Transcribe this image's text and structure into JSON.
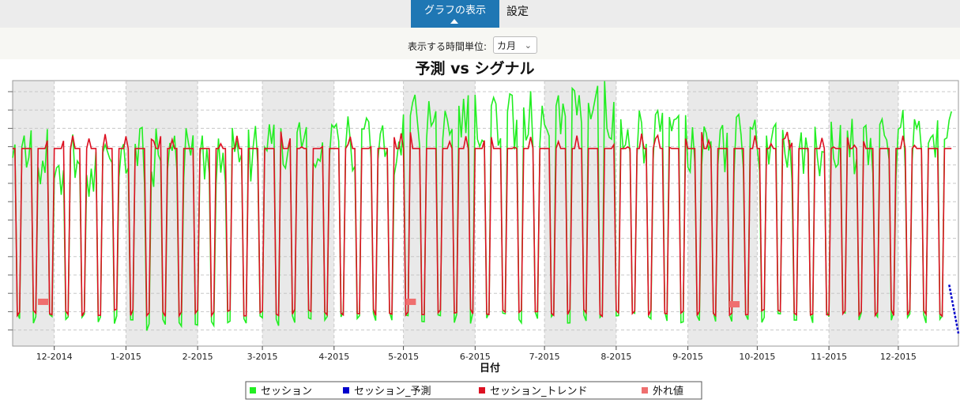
{
  "tabs": [
    {
      "label": "グラフの表示",
      "active": true
    },
    {
      "label": "設定",
      "active": false
    }
  ],
  "controls": {
    "time_unit_label": "表示する時間単位:",
    "time_unit_value": "カ月"
  },
  "colors": {
    "accent": "#1f77b4",
    "series_session": "#22ee22",
    "series_forecast": "#0000cc",
    "series_trend": "#dd1122",
    "outlier": "#ef6f6f"
  },
  "chart_data": {
    "type": "line",
    "title": "予測 vs シグナル",
    "xlabel": "日付",
    "ylabel": "",
    "x_ticks": [
      "12-2014",
      "1-2015",
      "2-2015",
      "3-2015",
      "4-2015",
      "5-2015",
      "6-2015",
      "7-2015",
      "8-2015",
      "9-2015",
      "10-2015",
      "11-2015",
      "12-2015"
    ],
    "x_range": [
      "2014-11-13",
      "2015-12-27"
    ],
    "y_ticks_visible": false,
    "grid": true,
    "legend_position": "bottom",
    "series": [
      {
        "name": "セッション",
        "color": "#22ee22",
        "values_per_month": [
          {
            "month": "2014-11",
            "weekday_level": 0.83,
            "weekend_level": 0.09
          },
          {
            "month": "2014-12",
            "weekday_level": 0.78,
            "weekend_level": 0.08
          },
          {
            "month": "2015-01",
            "weekday_level": 0.82,
            "weekend_level": 0.06
          },
          {
            "month": "2015-02",
            "weekday_level": 0.82,
            "weekend_level": 0.08
          },
          {
            "month": "2015-03",
            "weekday_level": 0.88,
            "weekend_level": 0.08
          },
          {
            "month": "2015-04",
            "weekday_level": 0.86,
            "weekend_level": 0.09
          },
          {
            "month": "2015-05",
            "weekday_level": 0.95,
            "weekend_level": 0.09
          },
          {
            "month": "2015-06",
            "weekday_level": 0.97,
            "weekend_level": 0.09
          },
          {
            "month": "2015-07",
            "weekday_level": 1.0,
            "weekend_level": 0.09
          },
          {
            "month": "2015-08",
            "weekday_level": 0.88,
            "weekend_level": 0.09
          },
          {
            "month": "2015-09",
            "weekday_level": 0.87,
            "weekend_level": 0.09
          },
          {
            "month": "2015-10",
            "weekday_level": 0.85,
            "weekend_level": 0.09
          },
          {
            "month": "2015-11",
            "weekday_level": 0.86,
            "weekend_level": 0.09
          },
          {
            "month": "2015-12",
            "weekday_level": 0.88,
            "weekend_level": 0.09
          }
        ]
      },
      {
        "name": "セッション_予測",
        "color": "#0000cc",
        "values": [
          {
            "x": "2015-12-23",
            "y": 0.2
          },
          {
            "x": "2015-12-27",
            "y": 0.0
          }
        ]
      },
      {
        "name": "セッション_トレンド",
        "color": "#dd1122",
        "weekday_level": 0.76,
        "weekend_level": 0.1,
        "peak_level": 0.83
      },
      {
        "name": "外れ値",
        "color": "#ef6f6f",
        "values": [
          {
            "x": "2014-11-26",
            "y": 0.13
          },
          {
            "x": "2015-05-04",
            "y": 0.13
          },
          {
            "x": "2015-09-21",
            "y": 0.12
          }
        ]
      }
    ]
  }
}
